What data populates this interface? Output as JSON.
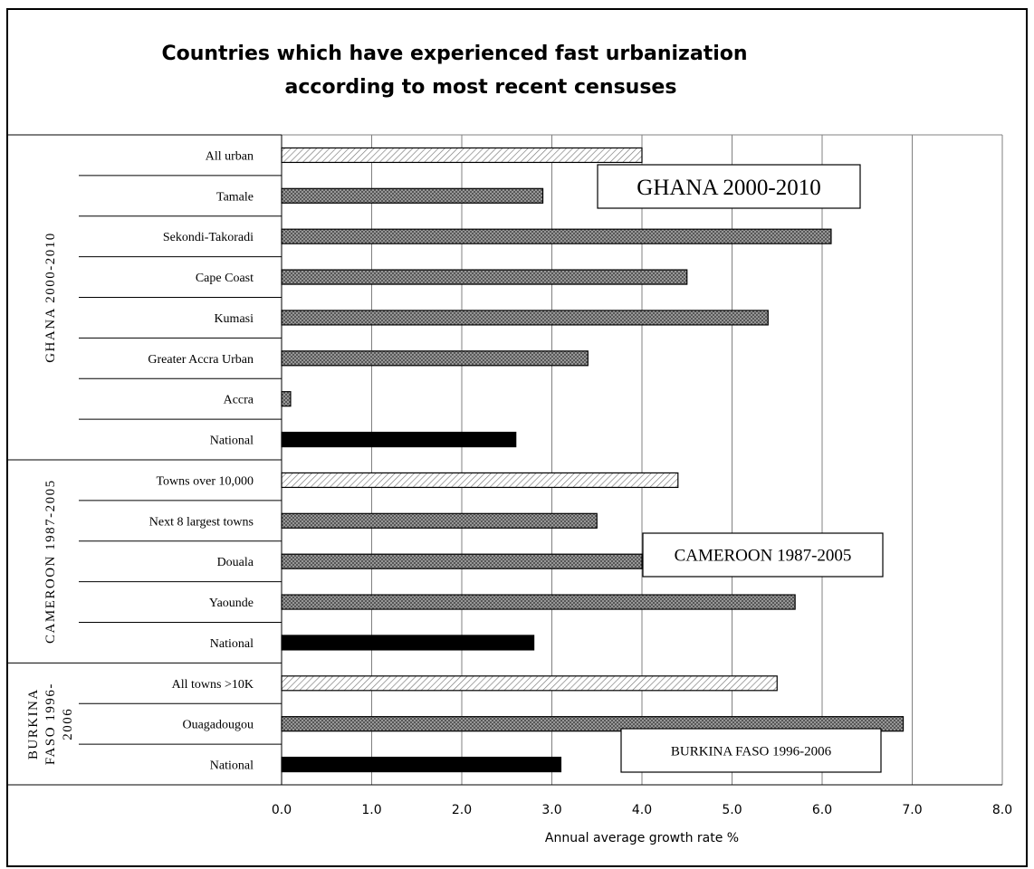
{
  "chart_data": {
    "type": "bar",
    "orientation": "horizontal",
    "title_line1": "Countries which have experienced fast urbanization",
    "title_line2": "according to most recent censuses",
    "xlabel": "Annual average growth rate %",
    "xlim": [
      0,
      8
    ],
    "xticks": [
      "0.0",
      "1.0",
      "2.0",
      "3.0",
      "4.0",
      "5.0",
      "6.0",
      "7.0",
      "8.0"
    ],
    "grid": "vertical",
    "groups": [
      {
        "label": "GHANA 2000-2010",
        "label_lines": [
          "GHANA 2000-2010"
        ],
        "annotation": "GHANA 2000-2010",
        "categories": [
          "All urban",
          "Tamale",
          "Sekondi-Takoradi",
          "Cape Coast",
          "Kumasi",
          "Greater Accra Urban",
          "Accra",
          "National"
        ],
        "values": [
          4.0,
          2.9,
          6.1,
          4.5,
          5.4,
          3.4,
          0.1,
          2.6
        ],
        "styles": [
          "hatch",
          "cross",
          "cross",
          "cross",
          "cross",
          "cross",
          "cross",
          "solid"
        ]
      },
      {
        "label": "CAMEROON 1987-2005",
        "label_lines": [
          "CAMEROON 1987-2005"
        ],
        "annotation": "CAMEROON 1987-2005",
        "categories": [
          "Towns over 10,000",
          "Next 8 largest towns",
          "Douala",
          "Yaounde",
          "National"
        ],
        "values": [
          4.4,
          3.5,
          4.0,
          5.7,
          2.8
        ],
        "styles": [
          "hatch",
          "cross",
          "cross",
          "cross",
          "solid"
        ]
      },
      {
        "label": "BURKINA FASO 1996-2006",
        "label_lines": [
          "BURKINA",
          "FASO 1996-",
          "2006"
        ],
        "annotation": "BURKINA FASO 1996-2006",
        "categories": [
          "All towns >10K",
          "Ouagadougou",
          "National"
        ],
        "values": [
          5.5,
          6.9,
          3.1
        ],
        "styles": [
          "hatch",
          "cross",
          "solid"
        ]
      }
    ]
  }
}
